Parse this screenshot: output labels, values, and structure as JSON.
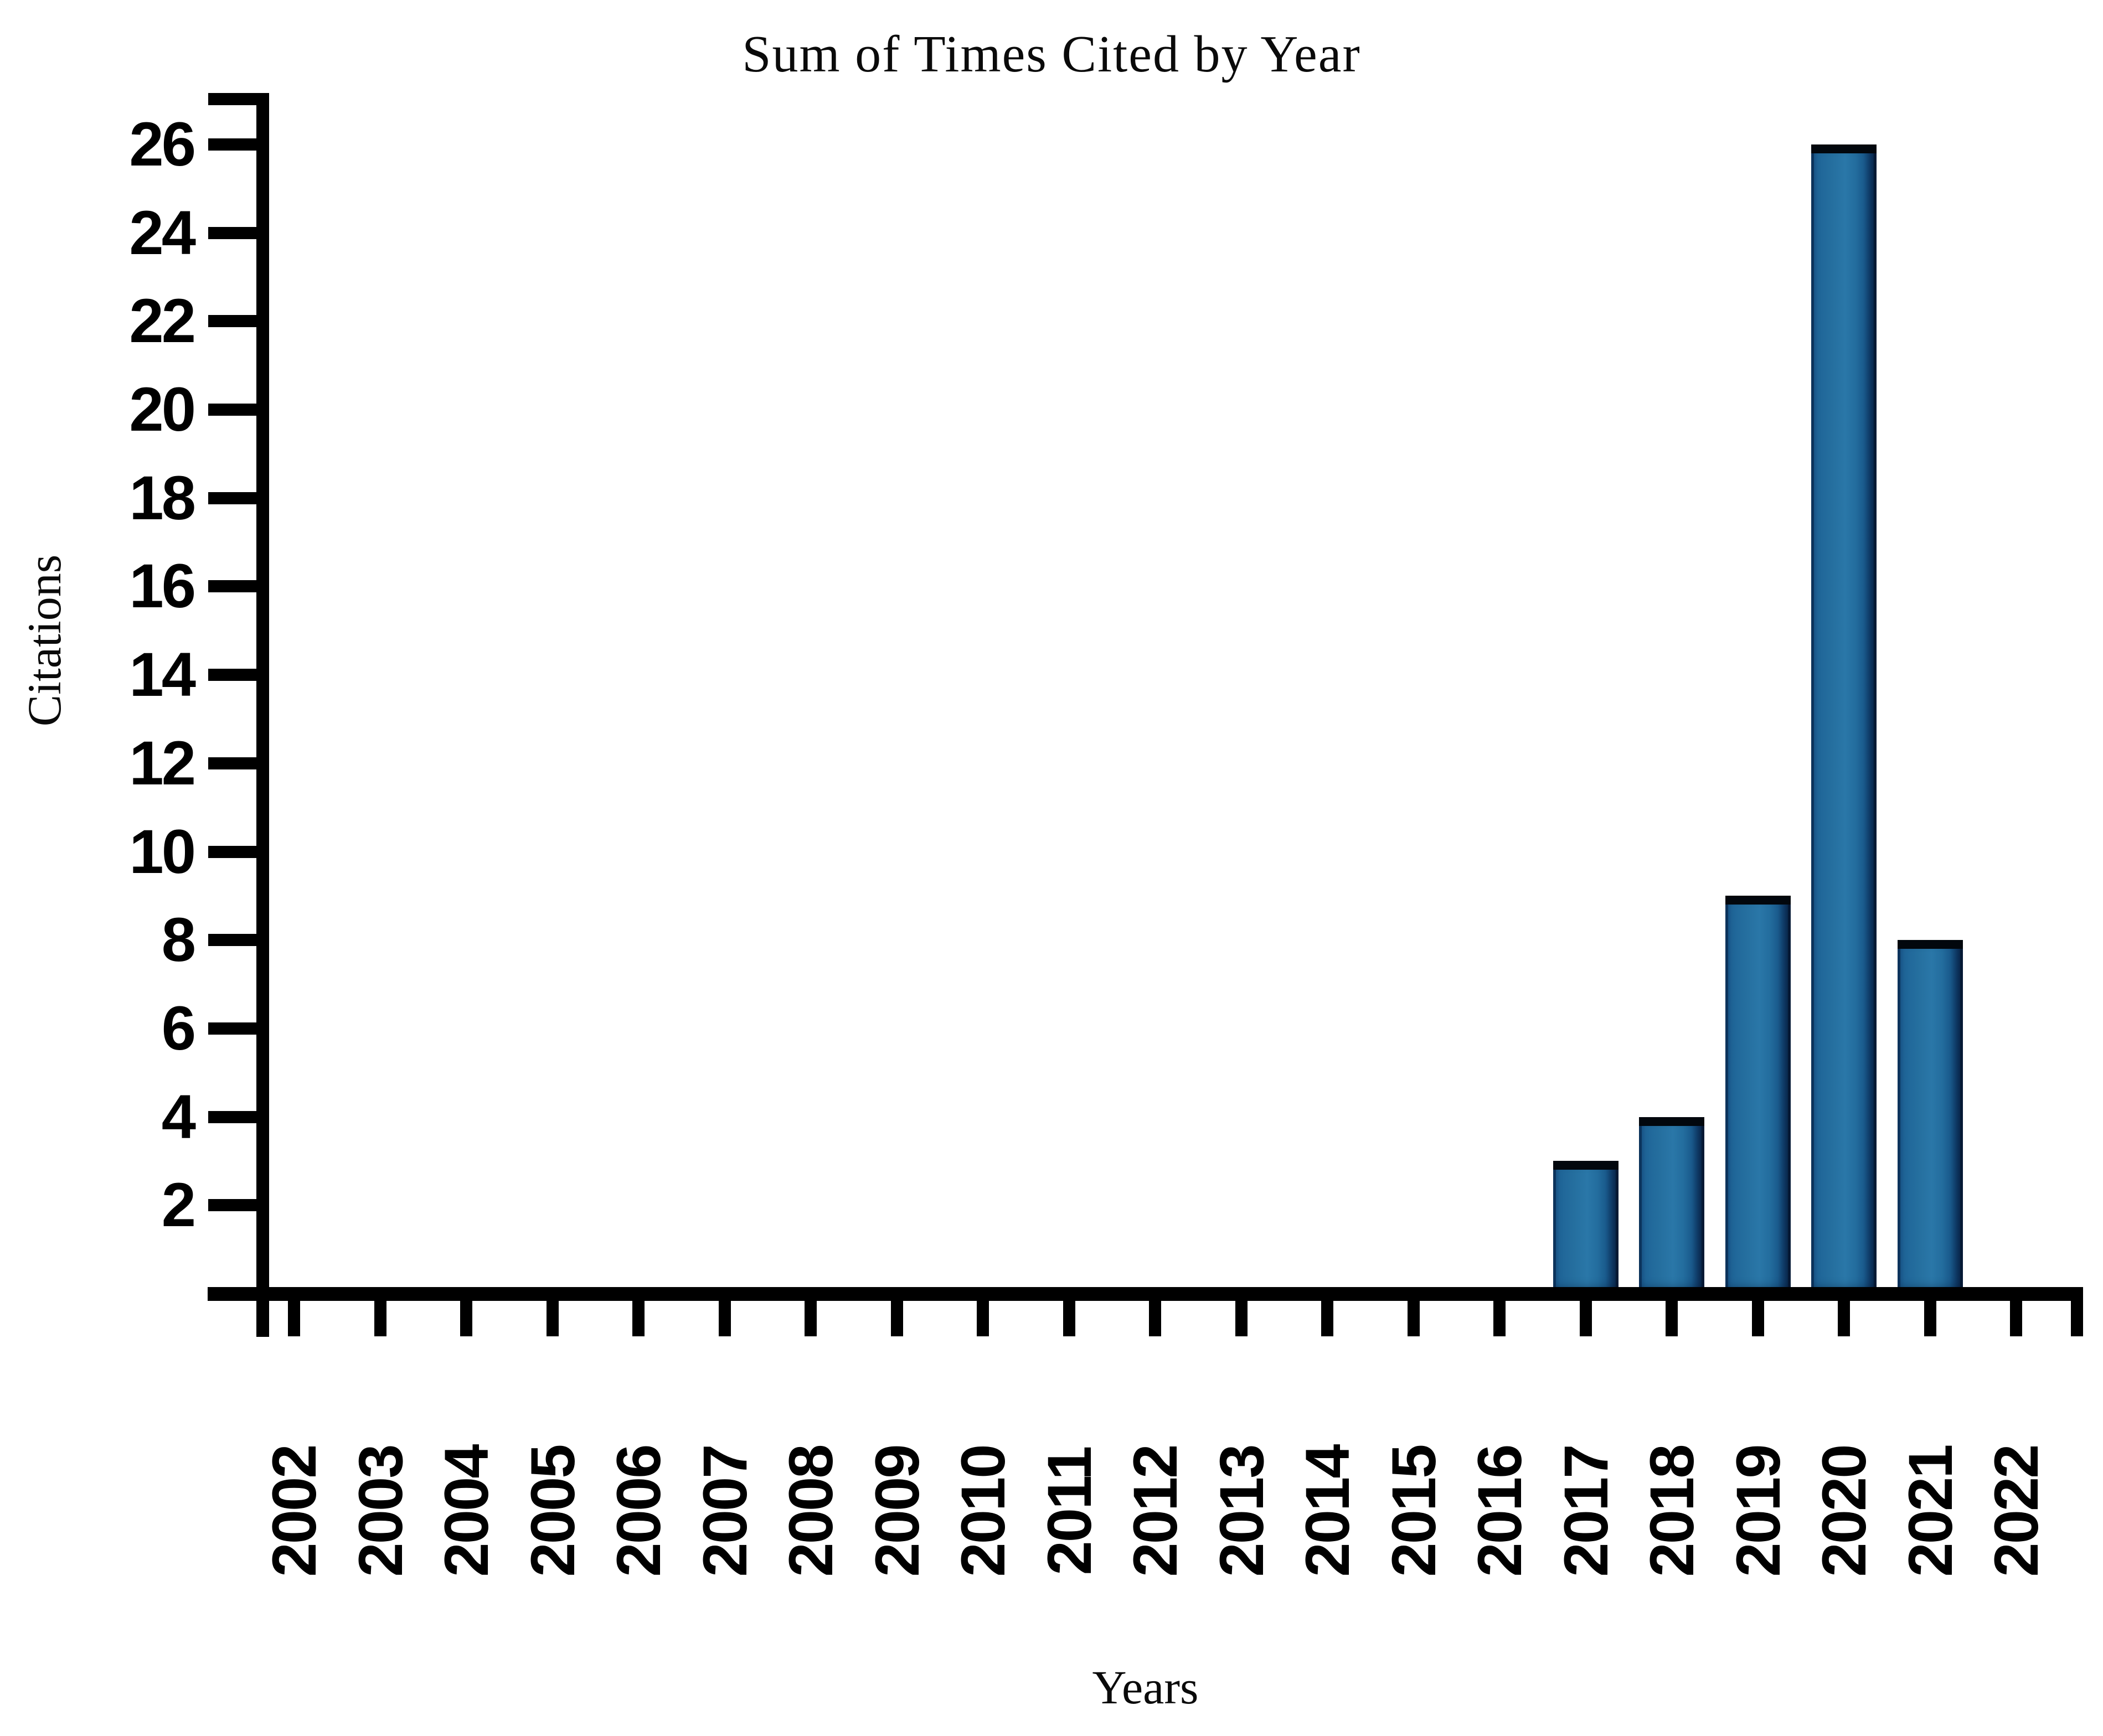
{
  "figure": {
    "title": "Sum of Times Cited by Year",
    "x_axis_title": "Years",
    "y_axis_title": "Citations"
  },
  "chart_data": {
    "type": "bar",
    "title": "Sum of Times Cited by Year",
    "xlabel": "Years",
    "ylabel": "Citations",
    "categories": [
      "2002",
      "2003",
      "2004",
      "2005",
      "2006",
      "2007",
      "2008",
      "2009",
      "2010",
      "2011",
      "2012",
      "2013",
      "2014",
      "2015",
      "2016",
      "2017",
      "2018",
      "2019",
      "2020",
      "2021",
      "2022"
    ],
    "values": [
      0,
      0,
      0,
      0,
      0,
      0,
      0,
      0,
      0,
      0,
      0,
      0,
      0,
      0,
      0,
      3,
      4,
      9,
      26,
      8,
      0
    ],
    "y_ticks": [
      2,
      4,
      6,
      8,
      10,
      12,
      14,
      16,
      18,
      20,
      22,
      24,
      26
    ],
    "ylim": [
      0,
      27
    ],
    "grid": false,
    "legend": false,
    "colors": {
      "bar_main": "#2a77a8",
      "bar_shadow_edge": "#082142",
      "bar_outline": "#02070d",
      "axis": "#000000",
      "background": "#ffffff",
      "text": "#0a0a0a"
    }
  }
}
